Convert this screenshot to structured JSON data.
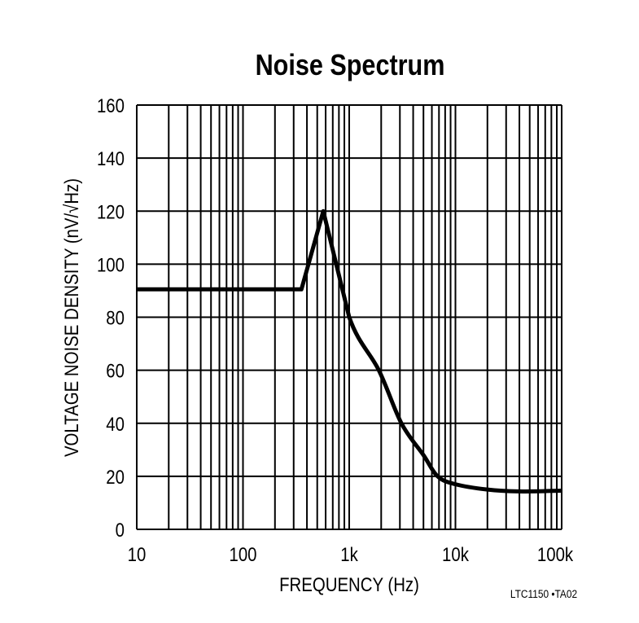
{
  "chart_data": {
    "type": "line",
    "title": "Noise Spectrum",
    "xlabel": "FREQUENCY (Hz)",
    "ylabel": "VOLTAGE NOISE DENSITY (nV/√Hz)",
    "xscale": "log",
    "xlim": [
      10,
      100000
    ],
    "ylim": [
      0,
      160
    ],
    "xticks": [
      10,
      100,
      1000,
      10000,
      100000
    ],
    "xtick_labels": [
      "10",
      "100",
      "1k",
      "10k",
      "100k"
    ],
    "yticks": [
      0,
      20,
      40,
      60,
      80,
      100,
      120,
      140,
      160
    ],
    "ytick_labels": [
      "0",
      "20",
      "40",
      "60",
      "80",
      "100",
      "120",
      "140",
      "160"
    ],
    "grid": true,
    "series": [
      {
        "color": "#000000",
        "x": [
          10,
          355,
          570,
          1000,
          1900,
          3100,
          5000,
          6800,
          10000,
          20000,
          40000,
          100000
        ],
        "y": [
          90.5,
          90.5,
          120,
          80,
          60,
          40,
          28,
          20,
          17,
          15,
          14.3,
          14.6
        ]
      }
    ],
    "footnote": "LTC1150 •TA02"
  }
}
